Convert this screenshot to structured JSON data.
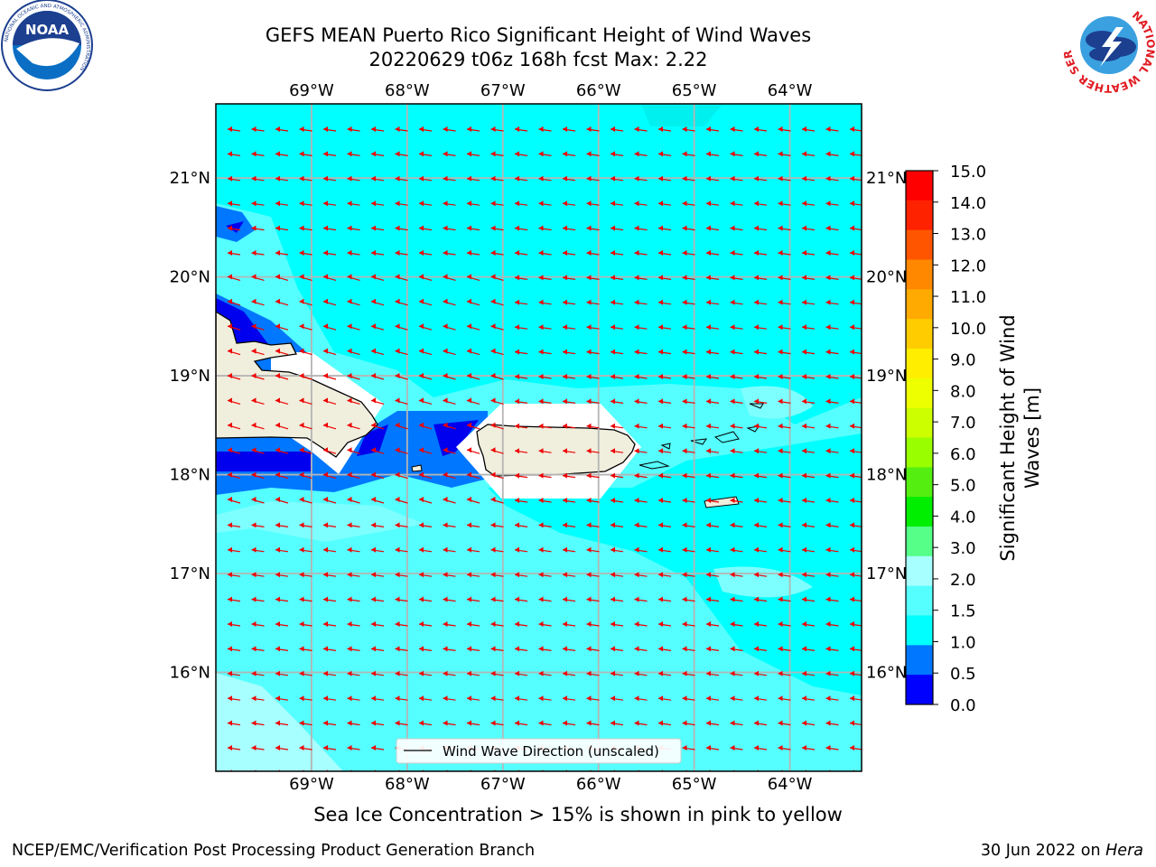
{
  "header": {
    "title_line1": "GEFS MEAN Puerto Rico Significant Height of Wind Waves",
    "title_line2": "20220629 t06z 168h fcst   Max: 2.22"
  },
  "logos": {
    "left": {
      "name": "NOAA",
      "ring_text": "NATIONAL OCEANIC AND ATMOSPHERIC ADMINISTRATION",
      "bottom_text": "U.S. DEPARTMENT OF COMMERCE"
    },
    "right": {
      "name": "NATIONAL WEATHER SERVICE"
    }
  },
  "map": {
    "lon_labels": [
      "69°W",
      "68°W",
      "67°W",
      "66°W",
      "65°W",
      "64°W"
    ],
    "lat_labels": [
      "21°N",
      "20°N",
      "19°N",
      "18°N",
      "17°N",
      "16°N"
    ],
    "lon_values": [
      -69,
      -68,
      -67,
      -66,
      -65,
      -64
    ],
    "lat_values": [
      21,
      20,
      19,
      18,
      17,
      16
    ],
    "extent": {
      "lon_min": -70,
      "lon_max": -63.25,
      "lat_min": 15,
      "lat_max": 21.75
    },
    "legend_label": "Wind Wave Direction (unscaled)",
    "wind_direction": "east-to-west",
    "colors": {
      "ocean_low": "#00ffff",
      "ocean_mid": "#55ffff",
      "ocean_high": "#a7ffff",
      "shallow": "#0077ff",
      "deep_blue": "#0000ee",
      "land": "#f0eedd",
      "arrow": "#ee0000",
      "grid": "#b5b5b5"
    }
  },
  "colorbar": {
    "label": "Significant Height of Wind Waves [m]",
    "label_line1": "Significant Height of Wind",
    "label_line2": "Waves [m]",
    "ticks": [
      "15.0",
      "14.0",
      "13.0",
      "12.0",
      "11.0",
      "10.0",
      "9.0",
      "8.0",
      "7.0",
      "6.0",
      "5.0",
      "4.0",
      "3.0",
      "2.0",
      "1.5",
      "1.0",
      "0.5",
      "0.0"
    ],
    "colors_top_to_bottom": [
      "#ff0000",
      "#ff2200",
      "#ff5500",
      "#ff8800",
      "#ffaa00",
      "#ffcc00",
      "#ffee00",
      "#eeff00",
      "#ccff00",
      "#99ff00",
      "#55ee11",
      "#00ee00",
      "#55ff88",
      "#a7ffff",
      "#55ffff",
      "#00ffff",
      "#0077ff",
      "#0000ff"
    ]
  },
  "notes": {
    "sea_ice": "Sea Ice Concentration > 15% is shown in pink to yellow"
  },
  "footer": {
    "left": "NCEP/EMC/Verification Post Processing Product Generation Branch",
    "date": "30 Jun 2022 on",
    "host": "Hera"
  }
}
